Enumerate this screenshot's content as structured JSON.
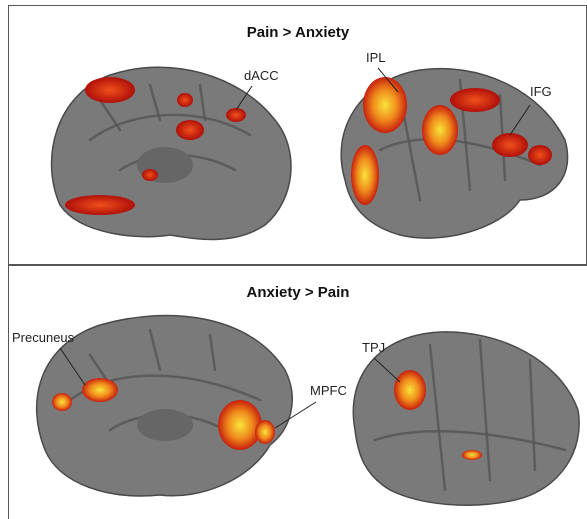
{
  "panels": [
    {
      "title": "Pain > Anxiety",
      "labels": [
        "dACC",
        "IPL",
        "IFG"
      ]
    },
    {
      "title": "Anxiety > Pain",
      "labels": [
        "Precuneus",
        "MPFC",
        "TPJ"
      ]
    }
  ]
}
